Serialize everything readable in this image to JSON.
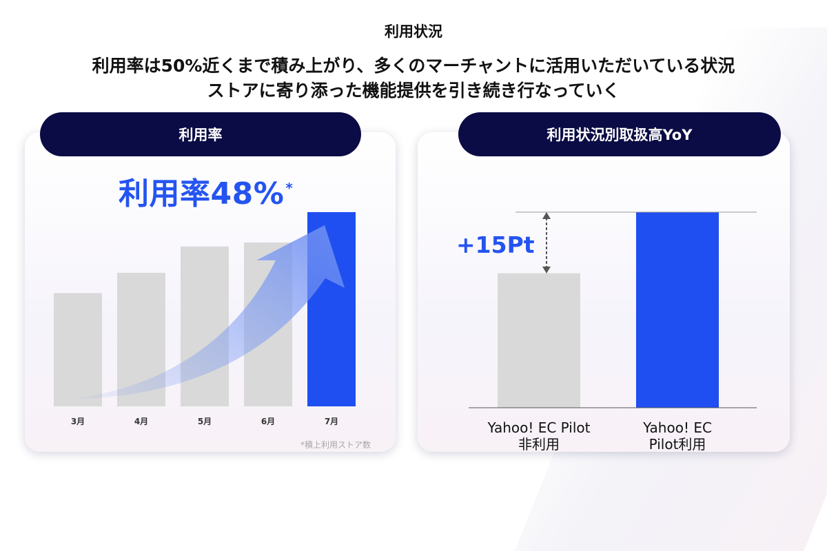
{
  "header": {
    "title": "利用状況",
    "headline_line1": "利用率は50%近くまで積み上がり、多くのマーチャントに活用いただいている状況",
    "headline_line2": "ストアに寄り添った機能提供を引き続き行なっていく"
  },
  "left_panel": {
    "pill_label": "利用率",
    "big_stat": "利用率48%",
    "big_stat_mark": "*",
    "footnote": "*積上利用ストア数"
  },
  "right_panel": {
    "pill_label": "利用状況別取扱高YoY",
    "delta_label": "+15Pt",
    "x_labels": [
      [
        "Yahoo! EC Pilot",
        "非利用"
      ],
      [
        "Yahoo! EC",
        "Pilot利用"
      ]
    ]
  },
  "colors": {
    "accent_blue": "#1f4ff0",
    "bar_gray": "#d9d9d9",
    "navy": "#0b0c45"
  },
  "chart_data": [
    {
      "type": "bar",
      "title": "利用率",
      "categories": [
        "3月",
        "4月",
        "5月",
        "6月",
        "7月"
      ],
      "values": [
        28,
        33,
        39.5,
        40.5,
        48
      ],
      "unit": "%",
      "ylim": [
        0,
        48
      ],
      "highlight_index": 4,
      "annotation": "利用率48%",
      "trend_arrow": true,
      "grid": false
    },
    {
      "type": "bar",
      "title": "利用状況別取扱高YoY",
      "categories": [
        "Yahoo! EC Pilot 非利用",
        "Yahoo! EC Pilot利用"
      ],
      "values": [
        33,
        48
      ],
      "highlight_index": 1,
      "annotation": "+15Pt",
      "grid": false
    }
  ]
}
